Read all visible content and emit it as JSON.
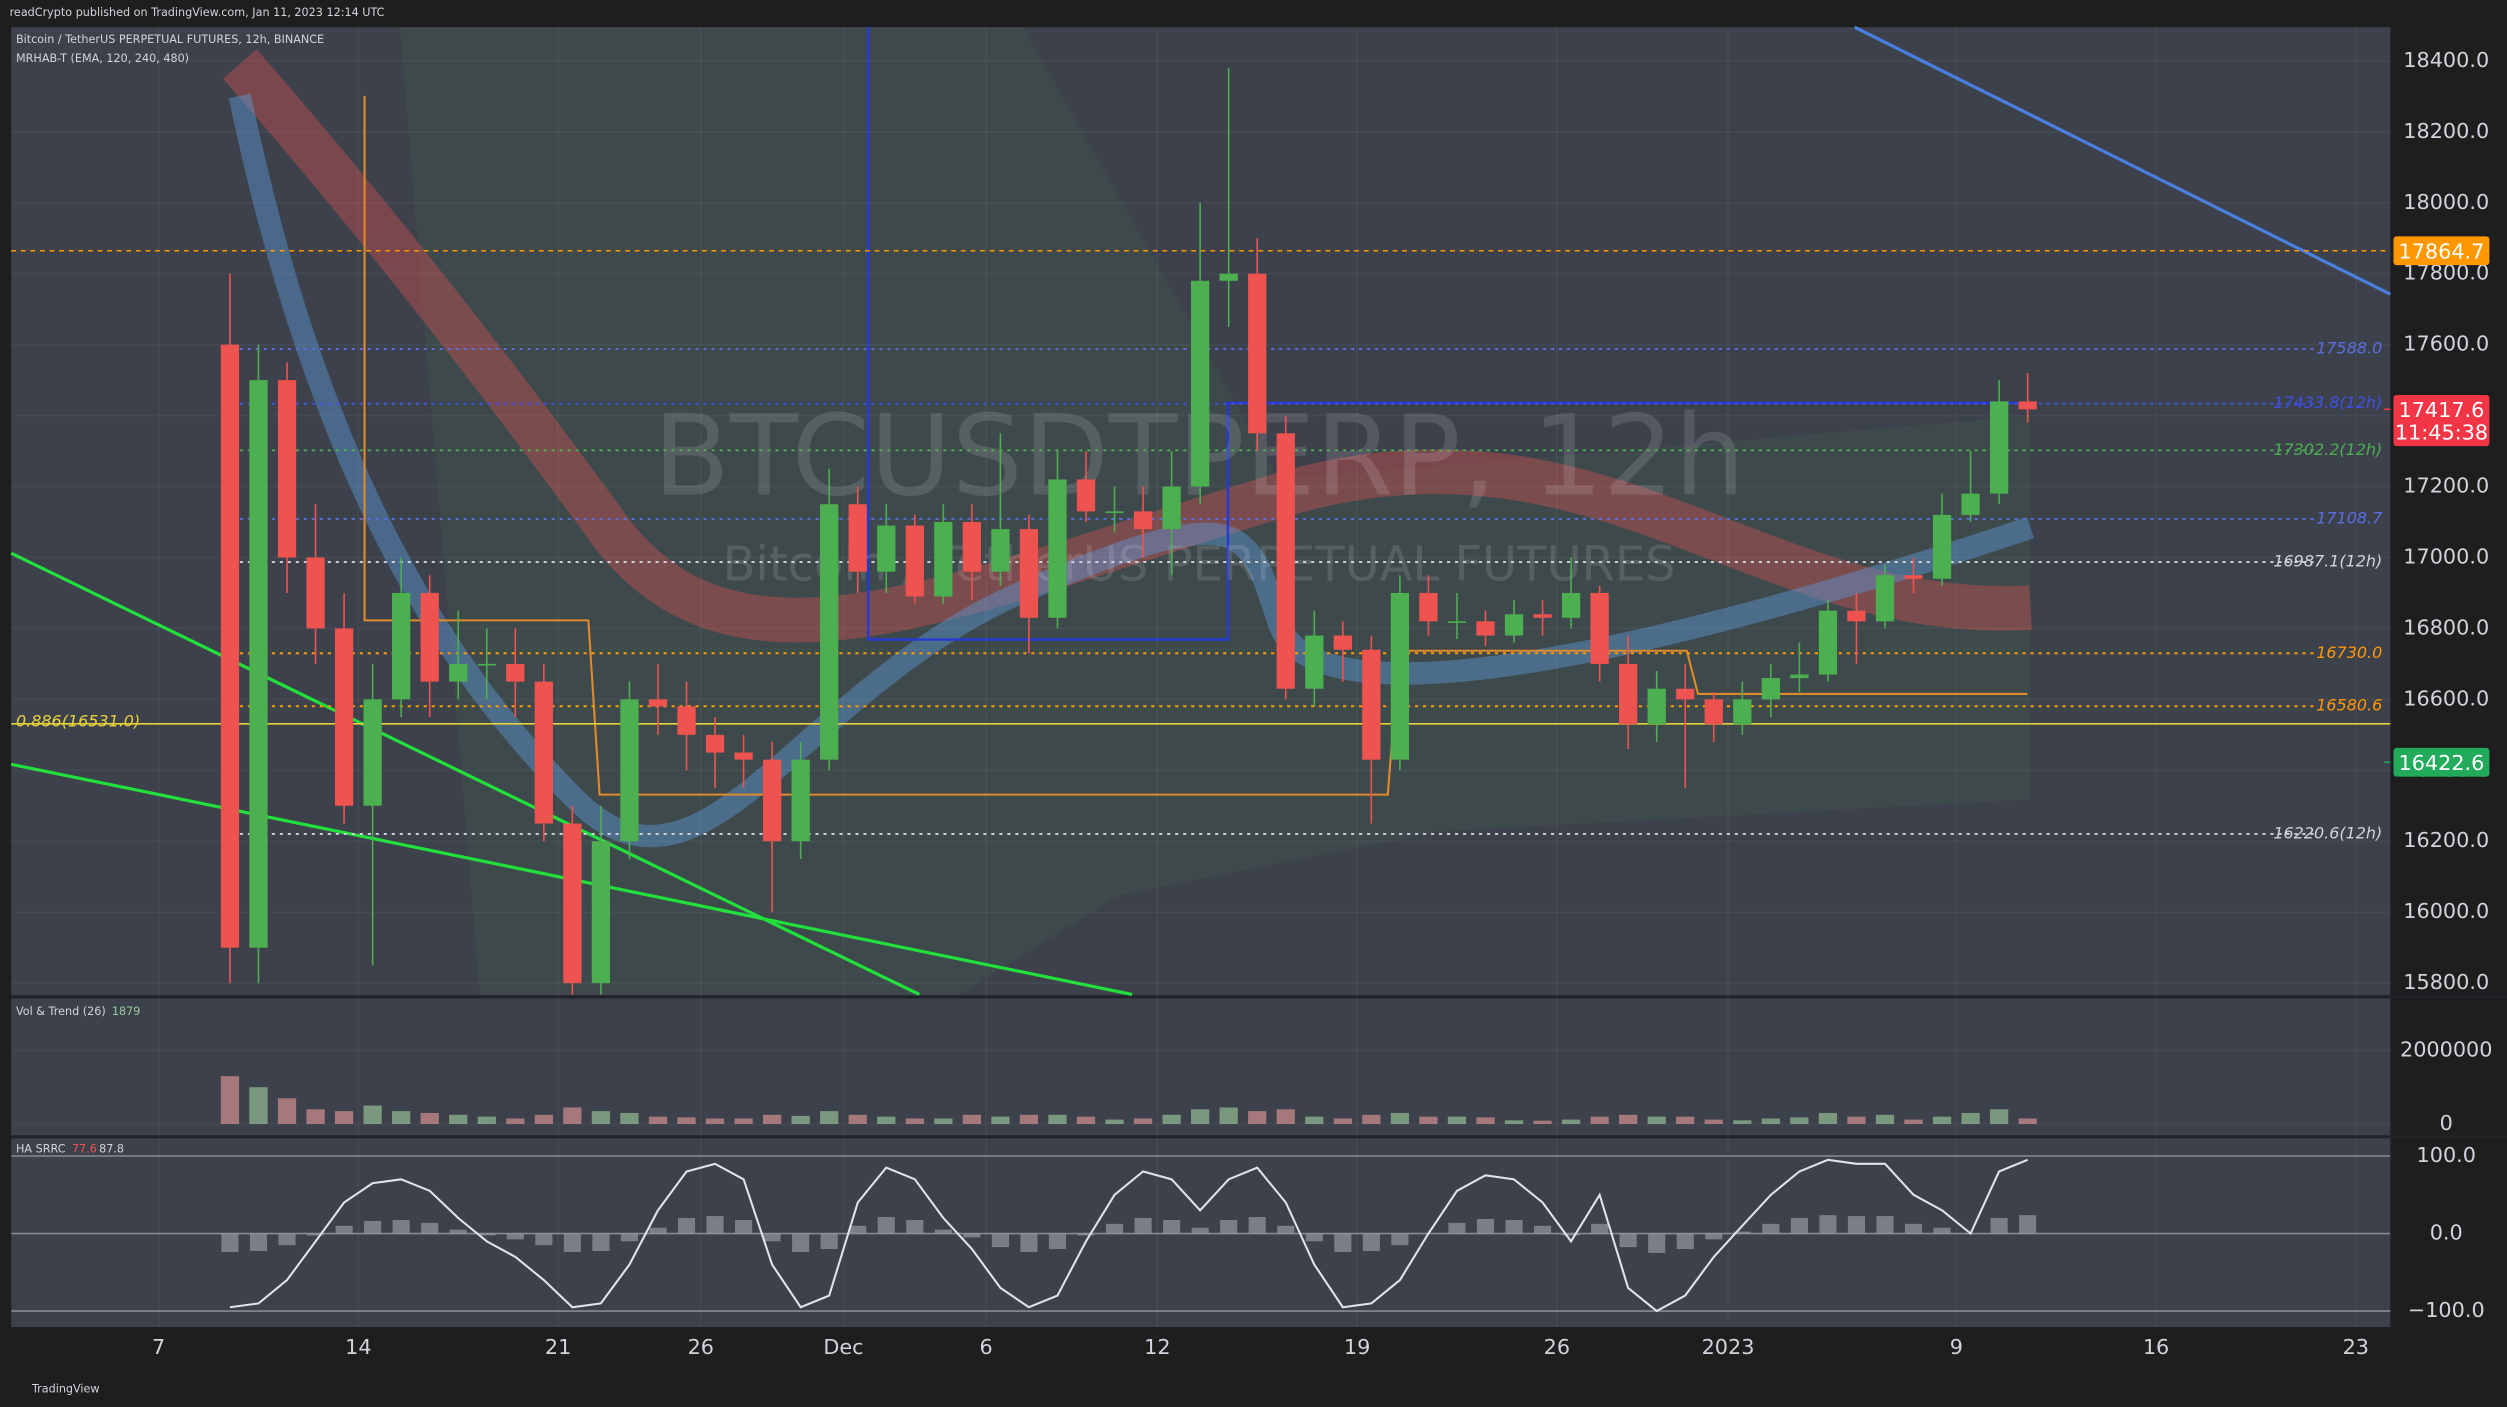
{
  "header": {
    "publisher": "readCrypto published on TradingView.com, Jan 11, 2023 12:14 UTC",
    "symbol": "Bitcoin / TetherUS PERPETUAL FUTURES, 12h, BINANCE",
    "indicator": "MRHAB-T (EMA, 120, 240, 480)"
  },
  "watermark": {
    "title": "BTCUSDTPERP, 12h",
    "subtitle": "Bitcoin / TetherUS PERPETUAL FUTURES"
  },
  "footer": "TradingView",
  "chart_data": [
    {
      "type": "candlestick",
      "up_color": "#4caf50",
      "down_color": "#ef5350",
      "x": [
        "2022-11-09T12:00",
        "2022-11-10T12:00",
        "2022-11-11T12:00",
        "2022-11-12T12:00",
        "2022-11-13T12:00",
        "2022-11-14T12:00",
        "2022-11-15T12:00",
        "2022-11-16T12:00",
        "2022-11-17T12:00",
        "2022-11-18T12:00",
        "2022-11-19T12:00",
        "2022-11-20T12:00",
        "2022-11-21T12:00",
        "2022-11-22T12:00",
        "2022-11-23T12:00",
        "2022-11-24T12:00",
        "2022-11-25T12:00",
        "2022-11-26T12:00",
        "2022-11-27T12:00",
        "2022-11-28T12:00",
        "2022-11-29T12:00",
        "2022-11-30T12:00",
        "2022-12-01T12:00",
        "2022-12-02T12:00",
        "2022-12-03T12:00",
        "2022-12-04T12:00",
        "2022-12-05T12:00",
        "2022-12-06T12:00",
        "2022-12-07T12:00",
        "2022-12-08T12:00",
        "2022-12-09T12:00",
        "2022-12-10T12:00",
        "2022-12-11T12:00",
        "2022-12-12T12:00",
        "2022-12-13T12:00",
        "2022-12-14T12:00",
        "2022-12-15T12:00",
        "2022-12-16T12:00",
        "2022-12-17T12:00",
        "2022-12-18T12:00",
        "2022-12-19T12:00",
        "2022-12-20T12:00",
        "2022-12-21T12:00",
        "2022-12-22T12:00",
        "2022-12-23T12:00",
        "2022-12-24T12:00",
        "2022-12-25T12:00",
        "2022-12-26T12:00",
        "2022-12-27T12:00",
        "2022-12-28T12:00",
        "2022-12-29T12:00",
        "2022-12-30T12:00",
        "2022-12-31T12:00",
        "2023-01-01T12:00",
        "2023-01-02T12:00",
        "2023-01-03T12:00",
        "2023-01-04T12:00",
        "2023-01-05T12:00",
        "2023-01-06T12:00",
        "2023-01-07T12:00",
        "2023-01-08T12:00",
        "2023-01-09T12:00",
        "2023-01-10T12:00",
        "2023-01-11T12:00"
      ],
      "open": [
        17600,
        15900,
        17500,
        17000,
        16800,
        16300,
        16600,
        16900,
        16650,
        16700,
        16700,
        16650,
        16250,
        15800,
        16200,
        16600,
        16580,
        16500,
        16450,
        16430,
        16200,
        16430,
        17150,
        16960,
        17090,
        16890,
        17100,
        16960,
        17080,
        16830,
        17220,
        17130,
        17130,
        17080,
        17200,
        17780,
        17800,
        17350,
        16630,
        16780,
        16740,
        16430,
        16900,
        16820,
        16820,
        16780,
        16840,
        16830,
        16900,
        16700,
        16530,
        16630,
        16600,
        16530,
        16600,
        16660,
        16670,
        16850,
        16820,
        16950,
        16940,
        17120,
        17180,
        17440
      ],
      "high": [
        17800,
        17600,
        17550,
        17150,
        16900,
        16700,
        17000,
        16950,
        16850,
        16800,
        16800,
        16700,
        16300,
        16300,
        16650,
        16700,
        16650,
        16550,
        16500,
        16480,
        16480,
        17250,
        17200,
        17150,
        17120,
        17150,
        17150,
        17350,
        17120,
        17300,
        17300,
        17200,
        17200,
        17300,
        18000,
        18380,
        17900,
        17400,
        16850,
        16820,
        16780,
        16950,
        16950,
        16900,
        16850,
        16880,
        16880,
        17000,
        16920,
        16780,
        16680,
        16700,
        16620,
        16650,
        16700,
        16760,
        16880,
        16900,
        16980,
        17000,
        17180,
        17300,
        17500,
        17520
      ],
      "low": [
        15800,
        15800,
        16900,
        16700,
        16250,
        15850,
        16550,
        16550,
        16600,
        16600,
        16550,
        16200,
        15600,
        15650,
        16150,
        16500,
        16400,
        16350,
        16350,
        16000,
        16150,
        16400,
        16900,
        16900,
        16870,
        16870,
        16880,
        16920,
        16730,
        16800,
        17100,
        17070,
        17000,
        16950,
        17150,
        17650,
        17300,
        16600,
        16580,
        16650,
        16250,
        16400,
        16780,
        16770,
        16750,
        16760,
        16780,
        16800,
        16650,
        16460,
        16480,
        16350,
        16480,
        16500,
        16550,
        16620,
        16650,
        16700,
        16800,
        16900,
        16920,
        17100,
        17150,
        17380
      ],
      "close": [
        15900,
        17500,
        17000,
        16800,
        16300,
        16600,
        16900,
        16650,
        16700,
        16700,
        16650,
        16250,
        15800,
        16200,
        16600,
        16580,
        16500,
        16450,
        16430,
        16200,
        16430,
        17150,
        16960,
        17090,
        16890,
        17100,
        16960,
        17080,
        16830,
        17220,
        17130,
        17130,
        17080,
        17200,
        17780,
        17800,
        17350,
        16630,
        16780,
        16740,
        16430,
        16900,
        16820,
        16820,
        16780,
        16840,
        16830,
        16900,
        16700,
        16530,
        16630,
        16600,
        16530,
        16600,
        16660,
        16670,
        16850,
        16820,
        16950,
        16940,
        17120,
        17180,
        17440,
        17417.6
      ],
      "xlim": [
        "2022-11-01T20:00",
        "2023-01-24T05:00"
      ],
      "xticks": [
        {
          "value": "2022-11-07T00:00",
          "label": "7"
        },
        {
          "value": "2022-11-14T00:00",
          "label": "14"
        },
        {
          "value": "2022-11-21T00:00",
          "label": "21"
        },
        {
          "value": "2022-11-26T00:00",
          "label": "26"
        },
        {
          "value": "2022-12-01T00:00",
          "label": "Dec"
        },
        {
          "value": "2022-12-06T00:00",
          "label": "6"
        },
        {
          "value": "2022-12-12T00:00",
          "label": "12"
        },
        {
          "value": "2022-12-19T00:00",
          "label": "19"
        },
        {
          "value": "2022-12-26T00:00",
          "label": "26"
        },
        {
          "value": "2023-01-01T00:00",
          "label": "2023"
        },
        {
          "value": "2023-01-09T00:00",
          "label": "9"
        },
        {
          "value": "2023-01-16T00:00",
          "label": "16"
        },
        {
          "value": "2023-01-23T00:00",
          "label": "23"
        }
      ],
      "ylim": [
        15768,
        18495
      ],
      "yticks": [
        {
          "value": 15800,
          "label": "15800.0"
        },
        {
          "value": 16000,
          "label": "16000.0"
        },
        {
          "value": 16200,
          "label": "16200.0"
        },
        {
          "value": 16400,
          "label": "16400.0"
        },
        {
          "value": 16600,
          "label": "16600.0"
        },
        {
          "value": 16800,
          "label": "16800.0"
        },
        {
          "value": 17000,
          "label": "17000.0"
        },
        {
          "value": 17200,
          "label": "17200.0"
        },
        {
          "value": 17400,
          "label": "17400.0"
        },
        {
          "value": 17600,
          "label": "17600.0"
        },
        {
          "value": 17800,
          "label": "17800.0"
        },
        {
          "value": 18000,
          "label": "18000.0"
        },
        {
          "value": 18200,
          "label": "18200.0"
        },
        {
          "value": 18400,
          "label": "18400.0"
        }
      ],
      "levels": [
        {
          "value": 17588.0,
          "label": "17588.0",
          "color": "#5b6ee1"
        },
        {
          "value": 17433.8,
          "label": "17433.8(12h)",
          "color": "#3f51e6"
        },
        {
          "value": 17302.2,
          "label": "17302.2(12h)",
          "color": "#4caf50"
        },
        {
          "value": 17108.7,
          "label": "17108.7",
          "color": "#5b6ee1"
        },
        {
          "value": 16987.1,
          "label": "16987.1(12h)",
          "color": "#d1d4dc"
        },
        {
          "value": 16730.0,
          "label": "16730.0",
          "color": "#ff9800"
        },
        {
          "value": 16580.6,
          "label": "16580.6",
          "color": "#ff9800"
        },
        {
          "value": 16220.6,
          "label": "16220.6(12h)",
          "color": "#d1d4dc"
        }
      ],
      "fib_level": {
        "value": 16531.0,
        "label": "0.886(16531.0)",
        "color": "#e6d23a"
      },
      "price_tags": [
        {
          "value": 17864.7,
          "label": "17864.7",
          "color": "#ff9800"
        },
        {
          "value": 17417.6,
          "label": "17417.6",
          "color": "#f23645",
          "countdown": "11:45:38"
        },
        {
          "value": 16422.6,
          "label": "16422.6",
          "color": "#22ab5a"
        }
      ]
    },
    {
      "type": "bar",
      "title": "Vol & Trend (26)",
      "reading": "1879",
      "color": "#b2b5be",
      "values": [
        1300000,
        1000000,
        700000,
        400000,
        350000,
        500000,
        350000,
        300000,
        250000,
        200000,
        150000,
        250000,
        450000,
        350000,
        300000,
        200000,
        180000,
        150000,
        150000,
        250000,
        220000,
        350000,
        250000,
        200000,
        150000,
        150000,
        250000,
        200000,
        250000,
        250000,
        200000,
        120000,
        150000,
        250000,
        400000,
        450000,
        350000,
        400000,
        200000,
        150000,
        250000,
        300000,
        200000,
        200000,
        180000,
        100000,
        90000,
        120000,
        200000,
        250000,
        200000,
        200000,
        120000,
        100000,
        150000,
        180000,
        300000,
        200000,
        250000,
        120000,
        200000,
        300000,
        400000,
        150000
      ],
      "ylim": [
        0,
        3390000
      ],
      "yticks": [
        0,
        2000000
      ]
    },
    {
      "type": "line",
      "title": "HA SRRC",
      "readings": [
        "77.6",
        "87.8"
      ],
      "color": "#e0e3eb",
      "values": [
        -95,
        -90,
        -60,
        -10,
        40,
        65,
        70,
        55,
        20,
        -10,
        -30,
        -60,
        -95,
        -90,
        -40,
        30,
        80,
        90,
        70,
        -40,
        -95,
        -80,
        40,
        85,
        70,
        20,
        -20,
        -70,
        -95,
        -80,
        -10,
        50,
        80,
        70,
        30,
        70,
        85,
        40,
        -40,
        -95,
        -90,
        -60,
        0,
        55,
        75,
        70,
        40,
        -10,
        50,
        -70,
        -100,
        -80,
        -30,
        10,
        50,
        80,
        95,
        90,
        90,
        50,
        30,
        0,
        80,
        95
      ],
      "ylim": [
        -120.6,
        122.7
      ],
      "yticks": [
        {
          "value": 100,
          "label": "100.0"
        },
        {
          "value": 0,
          "label": "0.0"
        },
        {
          "value": -100,
          "label": "−100.0"
        }
      ]
    }
  ]
}
